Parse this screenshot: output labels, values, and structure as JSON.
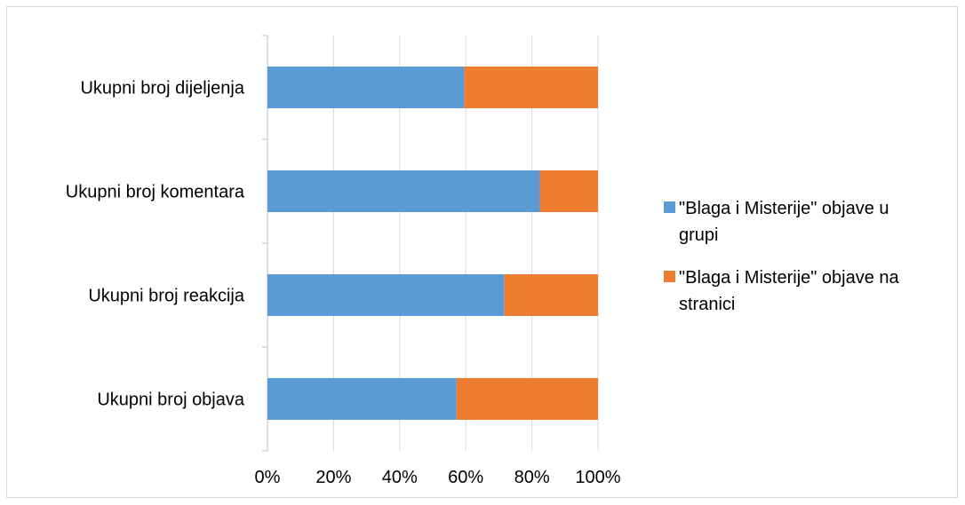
{
  "chart_data": {
    "type": "bar",
    "orientation": "horizontal",
    "stacked": "percent",
    "categories": [
      "Ukupni broj dijeljenja",
      "Ukupni broj komentara",
      "Ukupni broj reakcija",
      "Ukupni broj objava"
    ],
    "series": [
      {
        "name": "\"Blaga i Misterije\" objave u grupi",
        "name_lines": [
          "\"Blaga i Misterije\" objave u",
          "grupi"
        ],
        "color": "#5b9bd5",
        "values": [
          59.5,
          82.4,
          71.6,
          57.2
        ]
      },
      {
        "name": "\"Blaga i Misterije\" objave na stranici",
        "name_lines": [
          "\"Blaga i Misterije\" objave na",
          "stranici"
        ],
        "color": "#ed7d31",
        "values": [
          40.5,
          17.6,
          28.4,
          42.8
        ]
      }
    ],
    "xlim": [
      0,
      100
    ],
    "x_ticks": [
      "0%",
      "20%",
      "40%",
      "60%",
      "80%",
      "100%"
    ],
    "grid": true,
    "legend": "right",
    "title": "",
    "xlabel": "",
    "ylabel": ""
  }
}
